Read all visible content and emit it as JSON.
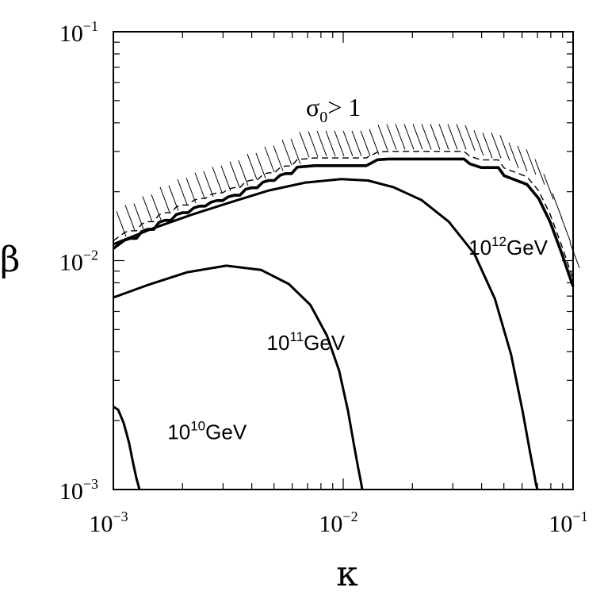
{
  "chart_data": {
    "type": "line",
    "x_scale": "log",
    "y_scale": "log",
    "xlim": [
      0.001,
      0.1
    ],
    "ylim": [
      0.001,
      0.1
    ],
    "xlabel": "κ",
    "ylabel": "β",
    "x_ticks": [
      {
        "value": 0.001,
        "base": "10",
        "exp": "−3"
      },
      {
        "value": 0.01,
        "base": "10",
        "exp": "−2"
      },
      {
        "value": 0.1,
        "base": "10",
        "exp": "−1"
      }
    ],
    "y_ticks": [
      {
        "value": 0.001,
        "base": "10",
        "exp": "−3"
      },
      {
        "value": 0.01,
        "base": "10",
        "exp": "−2"
      },
      {
        "value": 0.1,
        "base": "10",
        "exp": "−1"
      }
    ],
    "grid": false,
    "region": {
      "base": "σ",
      "sub": "0",
      "rest": "> 1"
    },
    "series": [
      {
        "name_base": "10",
        "name_exp": "10",
        "name_unit": "GeV",
        "label_at": [
          0.00172,
          0.00166
        ],
        "x": [
          0.001,
          0.00105,
          0.00111,
          0.00117,
          0.00122,
          0.00126,
          0.0013
        ],
        "y": [
          0.0023,
          0.00223,
          0.00195,
          0.0016,
          0.0013,
          0.00112,
          0.001
        ]
      },
      {
        "name_base": "10",
        "name_exp": "11",
        "name_unit": "GeV",
        "label_at": [
          0.00465,
          0.00408
        ],
        "x": [
          0.001,
          0.0014,
          0.0021,
          0.0031,
          0.0044,
          0.0058,
          0.0072,
          0.0085,
          0.0096,
          0.0105,
          0.0111,
          0.0116,
          0.0119,
          0.0121
        ],
        "y": [
          0.0069,
          0.0078,
          0.0089,
          0.0095,
          0.0091,
          0.0079,
          0.0064,
          0.0047,
          0.0033,
          0.0022,
          0.0016,
          0.00125,
          0.0011,
          0.001
        ]
      },
      {
        "name_base": "10",
        "name_exp": "12",
        "name_unit": "GeV",
        "label_at": [
          0.0351,
          0.0106
        ],
        "x": [
          0.001,
          0.00148,
          0.0022,
          0.0033,
          0.0047,
          0.0068,
          0.0098,
          0.0128,
          0.0166,
          0.0219,
          0.0288,
          0.0372,
          0.0457,
          0.0537,
          0.0603,
          0.0646,
          0.0676,
          0.069,
          0.07
        ],
        "y": [
          0.0118,
          0.0138,
          0.0159,
          0.0181,
          0.0202,
          0.0219,
          0.0227,
          0.0224,
          0.0209,
          0.0184,
          0.0148,
          0.0107,
          0.0068,
          0.0039,
          0.0022,
          0.0015,
          0.00118,
          0.00105,
          0.001
        ]
      },
      {
        "name_base": "",
        "name_exp": "",
        "name_unit": "",
        "x": [
          0.001,
          0.00106,
          0.00112,
          0.00118,
          0.00126,
          0.00133,
          0.00141,
          0.0015,
          0.00158,
          0.00168,
          0.00178,
          0.00188,
          0.002,
          0.00211,
          0.00224,
          0.00237,
          0.00251,
          0.00266,
          0.00282,
          0.00299,
          0.00316,
          0.00335,
          0.00355,
          0.00376,
          0.00398,
          0.00422,
          0.00447,
          0.00473,
          0.00501,
          0.00531,
          0.00562,
          0.00596,
          0.00631,
          0.0075,
          0.0087,
          0.0095,
          0.01,
          0.0126,
          0.0141,
          0.0158,
          0.02,
          0.025,
          0.0316,
          0.0335,
          0.0355,
          0.0398,
          0.0447,
          0.0473,
          0.0501,
          0.0562,
          0.0631,
          0.0708,
          0.0794,
          0.0891,
          0.1
        ],
        "y": [
          0.0113,
          0.0118,
          0.0123,
          0.0125,
          0.0125,
          0.0134,
          0.0137,
          0.0137,
          0.0147,
          0.015,
          0.015,
          0.0159,
          0.0162,
          0.0162,
          0.017,
          0.0173,
          0.0173,
          0.018,
          0.0183,
          0.0183,
          0.019,
          0.0193,
          0.0193,
          0.0205,
          0.0208,
          0.0208,
          0.022,
          0.0224,
          0.0224,
          0.0236,
          0.024,
          0.024,
          0.0256,
          0.026,
          0.026,
          0.026,
          0.026,
          0.026,
          0.0276,
          0.0278,
          0.0278,
          0.0278,
          0.0278,
          0.0278,
          0.0265,
          0.0255,
          0.0255,
          0.0255,
          0.0235,
          0.0225,
          0.0215,
          0.0187,
          0.0148,
          0.0108,
          0.0077
        ]
      }
    ]
  }
}
